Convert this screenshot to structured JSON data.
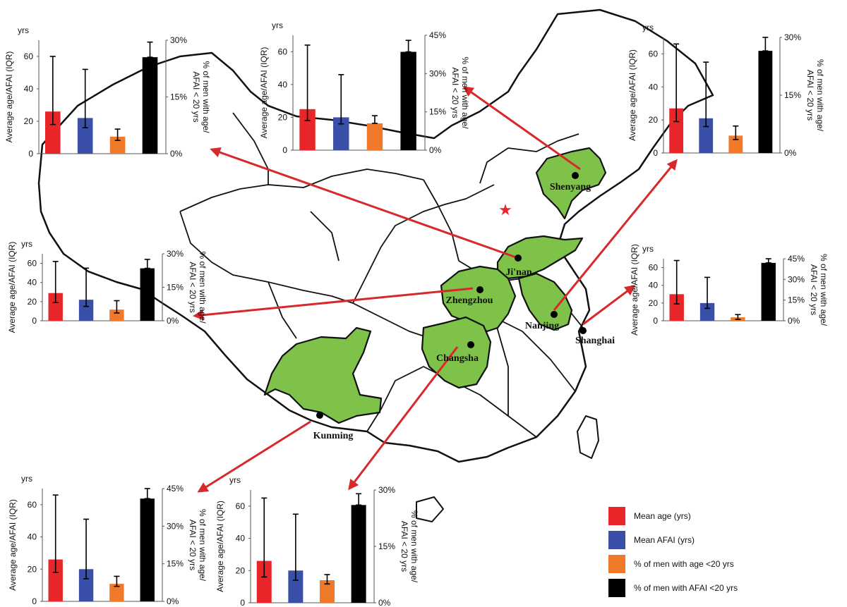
{
  "colors": {
    "mean_age": "#e8262a",
    "mean_afai": "#3a4fa8",
    "pct_age": "#f07a2a",
    "pct_afai": "#000000",
    "province_fill": "#7ec24a",
    "arrow": "#d8282b",
    "capital_star": "#e8262a"
  },
  "cities": [
    "Shenyang",
    "Ji'nan",
    "Zhengzhou",
    "Nanjing",
    "Shanghai",
    "Changsha",
    "Kunming"
  ],
  "legend": [
    {
      "key": "mean_age",
      "label": "Mean age (yrs)"
    },
    {
      "key": "mean_afai",
      "label": "Mean AFAI (yrs)"
    },
    {
      "key": "pct_age",
      "label": "% of men with age <20 yrs"
    },
    {
      "key": "pct_afai",
      "label": "% of men with AFAI <20 yrs"
    }
  ],
  "chart_data": [
    {
      "type": "bar",
      "city": "Ji'nan",
      "y_unit": "yrs",
      "ylabel": "Average age/AFAI (IQR)",
      "y2label": "% of men with age/ AFAI < 20 yrs",
      "ylim": [
        0,
        70
      ],
      "yticks": [
        0,
        20,
        40,
        60
      ],
      "y2lim": [
        0,
        30
      ],
      "y2ticks": [
        "0%",
        "15%",
        "30%"
      ],
      "mean_age": {
        "value": 26,
        "iqr": [
          18,
          60
        ]
      },
      "mean_afai": {
        "value": 22,
        "iqr": [
          16,
          52
        ]
      },
      "pct_age": {
        "value": 4.5,
        "range": [
          3.5,
          6.5
        ]
      },
      "pct_afai": {
        "value": 25.5,
        "range": [
          25.5,
          29.5
        ]
      }
    },
    {
      "type": "bar",
      "city": "Shenyang",
      "y_unit": "yrs",
      "ylabel": "Average age/AFAI (IQR)",
      "y2label": "% of men with age/ AFAI < 20 yrs",
      "ylim": [
        0,
        70
      ],
      "yticks": [
        0,
        20,
        40,
        60
      ],
      "y2lim": [
        0,
        45
      ],
      "y2ticks": [
        "0%",
        "15%",
        "30%",
        "45%"
      ],
      "mean_age": {
        "value": 25,
        "iqr": [
          18,
          64
        ]
      },
      "mean_afai": {
        "value": 20,
        "iqr": [
          16,
          46
        ]
      },
      "pct_age": {
        "value": 10.5,
        "range": [
          10.5,
          13.5
        ]
      },
      "pct_afai": {
        "value": 38.5,
        "range": [
          38.5,
          43
        ]
      }
    },
    {
      "type": "bar",
      "city": "Nanjing",
      "y_unit": "yrs",
      "ylabel": "Average age/AFAI (IQR)",
      "y2label": "% of men with age/ AFAI < 20 yrs",
      "ylim": [
        0,
        70
      ],
      "yticks": [
        0,
        20,
        40,
        60
      ],
      "y2lim": [
        0,
        30
      ],
      "y2ticks": [
        "0%",
        "15%",
        "30%"
      ],
      "mean_age": {
        "value": 27,
        "iqr": [
          19,
          66
        ]
      },
      "mean_afai": {
        "value": 21,
        "iqr": [
          16,
          55
        ]
      },
      "pct_age": {
        "value": 4.5,
        "range": [
          3.5,
          7
        ]
      },
      "pct_afai": {
        "value": 26.5,
        "range": [
          26.5,
          30
        ]
      }
    },
    {
      "type": "bar",
      "city": "Zhengzhou",
      "y_unit": "yrs",
      "ylabel": "Average age/AFAI (IQR)",
      "y2label": "% of men with age/ AFAI < 20 yrs",
      "ylim": [
        0,
        70
      ],
      "yticks": [
        0,
        20,
        40,
        60
      ],
      "y2lim": [
        0,
        30
      ],
      "y2ticks": [
        "0%",
        "15%",
        "30%"
      ],
      "mean_age": {
        "value": 29,
        "iqr": [
          19,
          62
        ]
      },
      "mean_afai": {
        "value": 22,
        "iqr": [
          15,
          55
        ]
      },
      "pct_age": {
        "value": 5,
        "range": [
          3.5,
          9
        ]
      },
      "pct_afai": {
        "value": 23.5,
        "range": [
          23.5,
          27.5
        ]
      }
    },
    {
      "type": "bar",
      "city": "Shanghai",
      "y_unit": "yrs",
      "ylabel": "Average age/AFAI (IQR)",
      "y2label": "% of men with age/ AFAI < 20 yrs",
      "ylim": [
        0,
        70
      ],
      "yticks": [
        0,
        20,
        40,
        60
      ],
      "y2lim": [
        0,
        45
      ],
      "y2ticks": [
        "0%",
        "15%",
        "30%",
        "45%"
      ],
      "mean_age": {
        "value": 30,
        "iqr": [
          19,
          68
        ]
      },
      "mean_afai": {
        "value": 20,
        "iqr": [
          14,
          49
        ]
      },
      "pct_age": {
        "value": 2.5,
        "range": [
          1,
          4.5
        ]
      },
      "pct_afai": {
        "value": 42,
        "range": [
          42,
          45
        ]
      }
    },
    {
      "type": "bar",
      "city": "Kunming",
      "y_unit": "yrs",
      "ylabel": "Average age/AFAI (IQR)",
      "y2label": "% of men with age/ AFAI < 20 yrs",
      "ylim": [
        0,
        70
      ],
      "yticks": [
        0,
        20,
        40,
        60
      ],
      "y2lim": [
        0,
        45
      ],
      "y2ticks": [
        "0%",
        "15%",
        "30%",
        "45%"
      ],
      "mean_age": {
        "value": 26,
        "iqr": [
          18,
          66
        ]
      },
      "mean_afai": {
        "value": 20,
        "iqr": [
          14,
          51
        ]
      },
      "pct_age": {
        "value": 7,
        "range": [
          6,
          10
        ]
      },
      "pct_afai": {
        "value": 41,
        "range": [
          41,
          45
        ]
      }
    },
    {
      "type": "bar",
      "city": "Changsha",
      "y_unit": "yrs",
      "ylabel": "Average age/AFAI (IQR)",
      "y2label": "% of men with age/ AFAI < 20 yrs",
      "ylim": [
        0,
        70
      ],
      "yticks": [
        0,
        20,
        40,
        60
      ],
      "y2lim": [
        0,
        30
      ],
      "y2ticks": [
        "0%",
        "15%",
        "30%"
      ],
      "mean_age": {
        "value": 26,
        "iqr": [
          16,
          65
        ]
      },
      "mean_afai": {
        "value": 20,
        "iqr": [
          14,
          55
        ]
      },
      "pct_age": {
        "value": 6,
        "range": [
          5,
          7.5
        ]
      },
      "pct_afai": {
        "value": 26,
        "range": [
          26,
          29
        ]
      }
    }
  ]
}
